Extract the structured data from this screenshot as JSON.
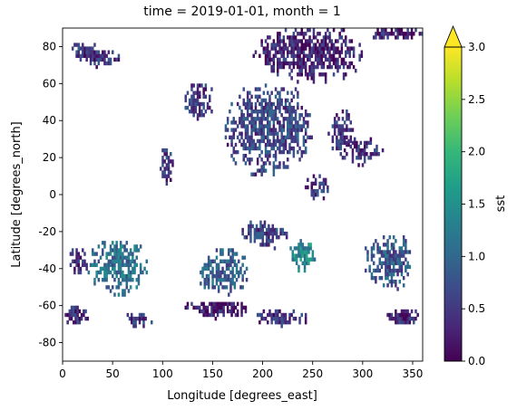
{
  "chart_data": {
    "type": "heatmap",
    "title": "time = 2019-01-01, month = 1",
    "xlabel": "Longitude [degrees_east]",
    "ylabel": "Latitude [degrees_north]",
    "xlim": [
      0,
      360
    ],
    "ylim": [
      -90,
      90
    ],
    "xticks": [
      0,
      50,
      100,
      150,
      200,
      250,
      300,
      350
    ],
    "yticks": [
      -80,
      -60,
      -40,
      -20,
      0,
      20,
      40,
      60,
      80
    ],
    "grid": false,
    "colorbar": {
      "label": "sst",
      "range": [
        0,
        3
      ],
      "ticks": [
        "0.0",
        "0.5",
        "1.0",
        "1.5",
        "2.0",
        "2.5",
        "3.0"
      ],
      "extend": "max",
      "colormap": "viridis",
      "colors": [
        "#440154",
        "#482878",
        "#3e4989",
        "#31688e",
        "#26828e",
        "#1f9e89",
        "#35b779",
        "#6ece58",
        "#b5de2b",
        "#fde725"
      ]
    },
    "regions": [
      {
        "lon": [
          5,
          35
        ],
        "lat": [
          72,
          82
        ],
        "value": 0.5
      },
      {
        "lon": [
          15,
          60
        ],
        "lat": [
          68,
          78
        ],
        "value": 0.4
      },
      {
        "lon": [
          190,
          300
        ],
        "lat": [
          60,
          90
        ],
        "value": 0.3
      },
      {
        "lon": [
          300,
          360
        ],
        "lat": [
          82,
          90
        ],
        "value": 0.3
      },
      {
        "lon": [
          160,
          250
        ],
        "lat": [
          10,
          60
        ],
        "value": 0.6
      },
      {
        "lon": [
          265,
          290
        ],
        "lat": [
          20,
          45
        ],
        "value": 0.5
      },
      {
        "lon": [
          275,
          320
        ],
        "lat": [
          15,
          30
        ],
        "value": 0.4
      },
      {
        "lon": [
          95,
          110
        ],
        "lat": [
          5,
          25
        ],
        "value": 0.5
      },
      {
        "lon": [
          120,
          150
        ],
        "lat": [
          40,
          60
        ],
        "value": 0.5
      },
      {
        "lon": [
          240,
          265
        ],
        "lat": [
          -5,
          10
        ],
        "value": 0.5
      },
      {
        "lon": [
          175,
          225
        ],
        "lat": [
          -30,
          -15
        ],
        "value": 0.6
      },
      {
        "lon": [
          25,
          85
        ],
        "lat": [
          -55,
          -25
        ],
        "value": 1.1
      },
      {
        "lon": [
          135,
          185
        ],
        "lat": [
          -55,
          -30
        ],
        "value": 0.9
      },
      {
        "lon": [
          225,
          255
        ],
        "lat": [
          -42,
          -25
        ],
        "value": 1.4
      },
      {
        "lon": [
          300,
          350
        ],
        "lat": [
          -52,
          -22
        ],
        "value": 0.8
      },
      {
        "lon": [
          0,
          25
        ],
        "lat": [
          -72,
          -60
        ],
        "value": 0.4
      },
      {
        "lon": [
          190,
          245
        ],
        "lat": [
          -72,
          -63
        ],
        "value": 0.4
      },
      {
        "lon": [
          320,
          355
        ],
        "lat": [
          -72,
          -62
        ],
        "value": 0.4
      },
      {
        "lon": [
          60,
          90
        ],
        "lat": [
          -72,
          -65
        ],
        "value": 0.5
      },
      {
        "lon": [
          120,
          190
        ],
        "lat": [
          -68,
          -58
        ],
        "value": 0.3
      },
      {
        "lon": [
          5,
          25
        ],
        "lat": [
          -45,
          -30
        ],
        "value": 0.4
      }
    ]
  }
}
